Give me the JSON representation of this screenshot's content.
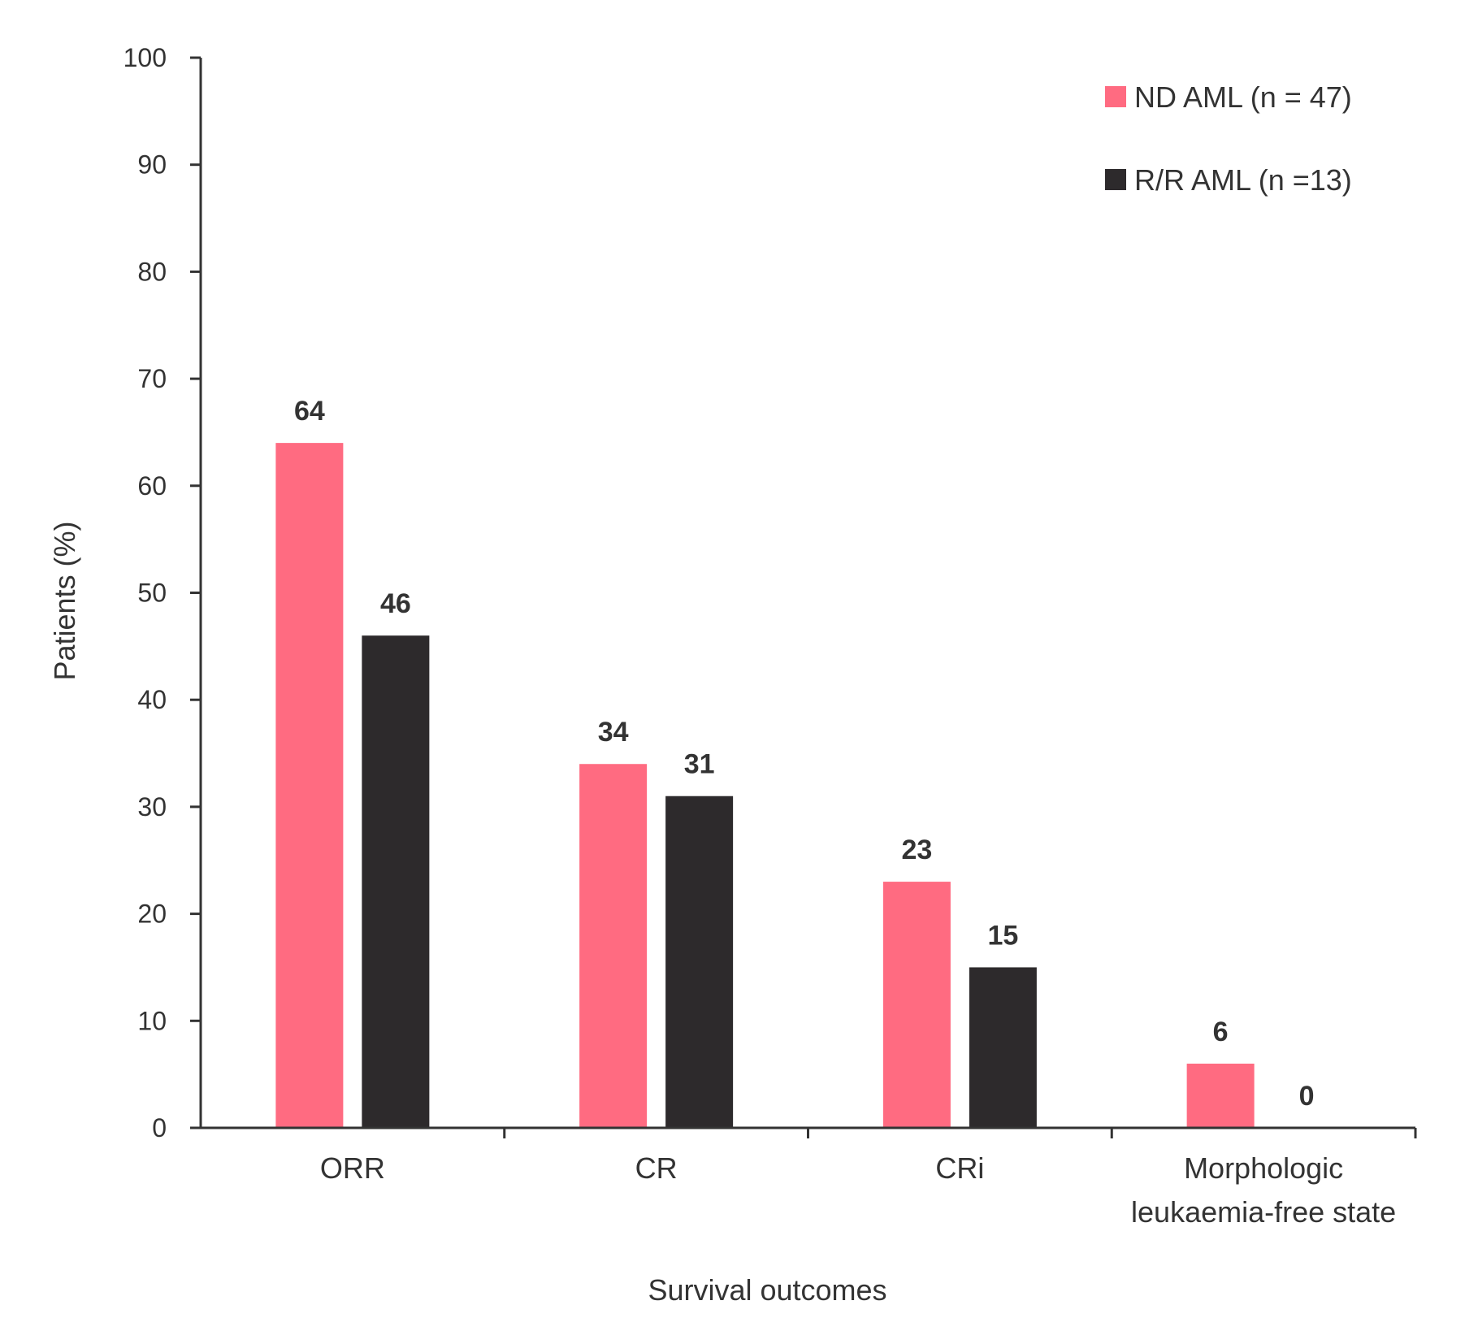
{
  "chart_data": {
    "type": "bar",
    "categories": [
      [
        "ORR"
      ],
      [
        "CR"
      ],
      [
        "CRi"
      ],
      [
        "Morphologic",
        "leukaemia-free state"
      ]
    ],
    "series": [
      {
        "name": "ND AML (n = 47)",
        "values": [
          64,
          34,
          23,
          6
        ],
        "color": "#ff6b81"
      },
      {
        "name": "R/R AML (n =13)",
        "values": [
          46,
          31,
          15,
          0
        ],
        "color": "#2d2a2c"
      }
    ],
    "xlabel": "Survival outcomes",
    "ylabel": "Patients (%)",
    "ylim": [
      0,
      100
    ],
    "yticks": [
      0,
      10,
      20,
      30,
      40,
      50,
      60,
      70,
      80,
      90,
      100
    ],
    "grid": false,
    "legend_position": "top-right",
    "data_labels": true
  }
}
